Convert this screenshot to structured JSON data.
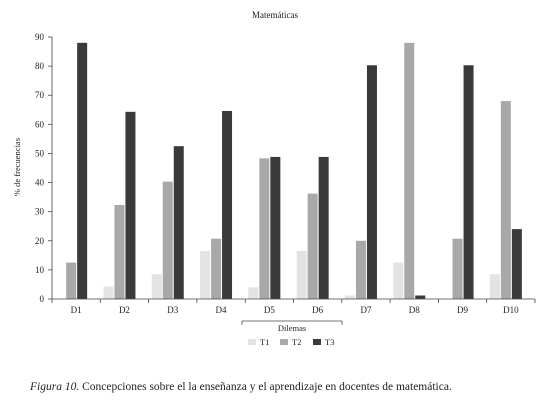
{
  "chart_data": {
    "type": "bar",
    "title": "Matemáticas",
    "xlabel": "Dilemas",
    "ylabel": "% de frecuencias",
    "ylim": [
      0,
      90
    ],
    "yticks": [
      0,
      10,
      20,
      30,
      40,
      50,
      60,
      70,
      80,
      90
    ],
    "categories": [
      "D1",
      "D2",
      "D3",
      "D4",
      "D5",
      "D6",
      "D7",
      "D8",
      "D9",
      "D10"
    ],
    "series": [
      {
        "name": "T1",
        "color": "#e3e3e3",
        "values": [
          0,
          4.3,
          8.5,
          16.5,
          4.0,
          16.5,
          1.2,
          12.5,
          0,
          8.5
        ]
      },
      {
        "name": "T2",
        "color": "#a8a8a8",
        "values": [
          12.5,
          32.3,
          40.3,
          20.7,
          48.3,
          36.2,
          20.0,
          88.0,
          20.7,
          68.0
        ]
      },
      {
        "name": "T3",
        "color": "#3a3a3a",
        "values": [
          88.0,
          64.3,
          52.5,
          64.6,
          48.8,
          48.8,
          80.3,
          1.2,
          80.3,
          24.0
        ]
      }
    ],
    "legend_position": "bottom",
    "grid": false
  },
  "caption": {
    "label": "Figura 10.",
    "text": " Concepciones sobre el la enseñanza y el aprendizaje en docentes de matemática."
  }
}
